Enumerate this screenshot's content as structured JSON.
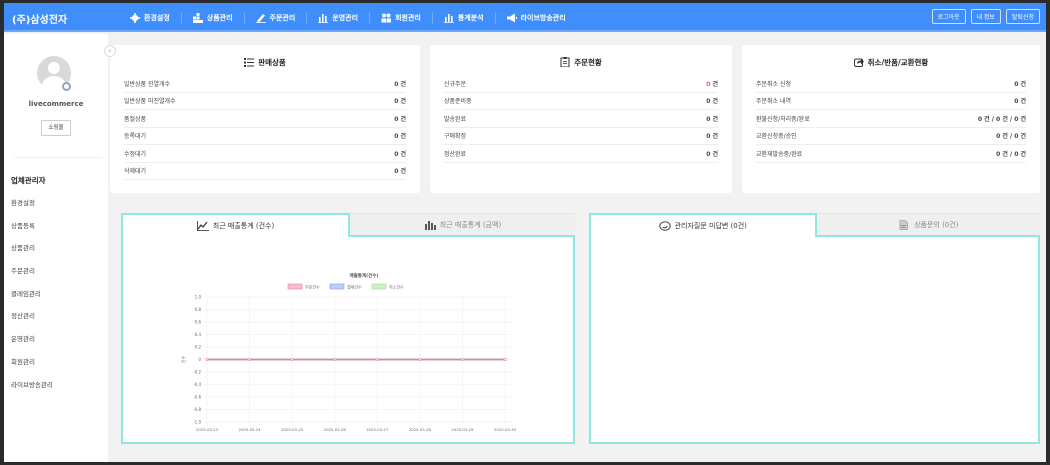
{
  "header": {
    "brand": "(주)삼성전자",
    "nav": [
      {
        "label": "환경설정",
        "icon": "gear-icon"
      },
      {
        "label": "상품관리",
        "icon": "boxes-icon"
      },
      {
        "label": "주문관리",
        "icon": "pencil-icon"
      },
      {
        "label": "운영관리",
        "icon": "bar-chart-icon"
      },
      {
        "label": "회원관리",
        "icon": "users-icon"
      },
      {
        "label": "통계분석",
        "icon": "bar-chart-icon"
      },
      {
        "label": "라이브방송관리",
        "icon": "megaphone-icon"
      }
    ],
    "buttons": [
      "로그아웃",
      "내 정보",
      "탈퇴신청"
    ]
  },
  "sidebar": {
    "username": "livecommerce",
    "shop_button": "쇼핑몰",
    "title": "업체관리자",
    "items": [
      "환경설정",
      "상품등록",
      "상품관리",
      "주문관리",
      "클레임관리",
      "정산관리",
      "운영관리",
      "회원관리",
      "라이브방송관리"
    ]
  },
  "cards": [
    {
      "title": "판매상품",
      "icon": "list-icon",
      "rows": [
        {
          "label": "일반상품 진열개수",
          "value": "0 건"
        },
        {
          "label": "일반상품 미진열개수",
          "value": "0 건"
        },
        {
          "label": "품절상품",
          "value": "0 건"
        },
        {
          "label": "등록대기",
          "value": "0 건"
        },
        {
          "label": "수정대기",
          "value": "0 건"
        },
        {
          "label": "삭제대기",
          "value": "0 건"
        }
      ]
    },
    {
      "title": "주문현황",
      "icon": "clipboard-icon",
      "rows": [
        {
          "label": "신규주문",
          "value": "0 건",
          "highlight": "#f05a5a"
        },
        {
          "label": "상품준비중",
          "value": "0 건"
        },
        {
          "label": "발송완료",
          "value": "0 건"
        },
        {
          "label": "구매확정",
          "value": "0 건"
        },
        {
          "label": "정산완료",
          "value": "0 건"
        }
      ]
    },
    {
      "title": "취소/반품/교환현황",
      "icon": "share-icon",
      "rows": [
        {
          "label": "주문취소 신청",
          "value": "0 건"
        },
        {
          "label": "주문취소 내역",
          "value": "0 건"
        },
        {
          "label": "환불신청/처리중/완료",
          "value": "0 건 / 0 건 / 0 건"
        },
        {
          "label": "교환신청중/승인",
          "value": "0 건 / 0 건"
        },
        {
          "label": "교환재발송중/완료",
          "value": "0 건 / 0 건"
        }
      ]
    }
  ],
  "left_panel": {
    "tabs": [
      {
        "label": "최근 매출통계 (건수)",
        "icon": "line-chart-icon",
        "active": true
      },
      {
        "label": "최근 매출통계 (금액)",
        "icon": "bar-chart-icon",
        "active": false
      }
    ]
  },
  "right_panel": {
    "tabs": [
      {
        "label": "관리자질문 미답변 (0건)",
        "icon": "chat-icon",
        "active": true
      },
      {
        "label": "상품문의 (0건)",
        "icon": "document-icon",
        "active": false
      }
    ]
  },
  "chart_data": {
    "type": "line",
    "title": "매출통계(건수)",
    "xlabel": "",
    "ylabel": "건수",
    "categories": [
      "2025-03-23",
      "2025-03-24",
      "2025-03-25",
      "2025-03-26",
      "2025-03-27",
      "2025-03-28",
      "2025-03-29",
      "2025-03-30"
    ],
    "ylim": [
      -1.0,
      1.0
    ],
    "yticks": [
      "1.0",
      "0.8",
      "0.6",
      "0.4",
      "0.2",
      "0",
      "-0.2",
      "-0.4",
      "-0.6",
      "-0.8",
      "-1.0"
    ],
    "grid": true,
    "legend_placement": "top",
    "series": [
      {
        "name": "주문건수",
        "color": "#f07f9c",
        "values": [
          0,
          0,
          0,
          0,
          0,
          0,
          0,
          0
        ]
      },
      {
        "name": "결제건수",
        "color": "#7f9cf5",
        "values": [
          0,
          0,
          0,
          0,
          0,
          0,
          0,
          0
        ]
      },
      {
        "name": "취소건수",
        "color": "#9ee08e",
        "values": [
          0,
          0,
          0,
          0,
          0,
          0,
          0,
          0
        ]
      }
    ]
  }
}
